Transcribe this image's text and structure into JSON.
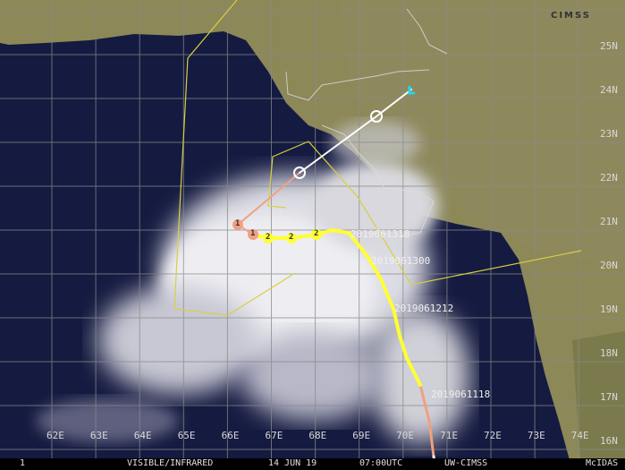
{
  "image": {
    "type": "satellite tropical cyclone track map",
    "product": "VISIBLE/INFRARED",
    "date": "14 JUN 19",
    "time": "07:00UTC",
    "source": "UW-CIMSS",
    "software": "McIDAS",
    "frame": "1",
    "logo": "CIMSS"
  },
  "longitude_labels": [
    "62E",
    "63E",
    "64E",
    "65E",
    "66E",
    "67E",
    "68E",
    "69E",
    "70E",
    "71E",
    "72E",
    "73E",
    "74E"
  ],
  "latitude_labels": [
    "25N",
    "24N",
    "23N",
    "22N",
    "21N",
    "20N",
    "19N",
    "18N",
    "17N",
    "16N"
  ],
  "track_labels": [
    "2019061318",
    "2019061300",
    "2019061212",
    "2019061118"
  ],
  "track_markers": {
    "forecast_far": [
      "",
      ""
    ],
    "forecast_cat1": [
      "1",
      "1"
    ],
    "current_cat2": [
      "2",
      "2",
      "2"
    ]
  },
  "colors": {
    "ocean": "#141a40",
    "land": "#8a8a5a",
    "cloud": "#e8e8ee",
    "track_cat2": "#ffff33",
    "track_cat1": "#f0a080",
    "track_ts": "#ffffff",
    "boundary": "#d8d040",
    "grid": "#8a8a8a",
    "end_marker": "#22d8e8"
  }
}
